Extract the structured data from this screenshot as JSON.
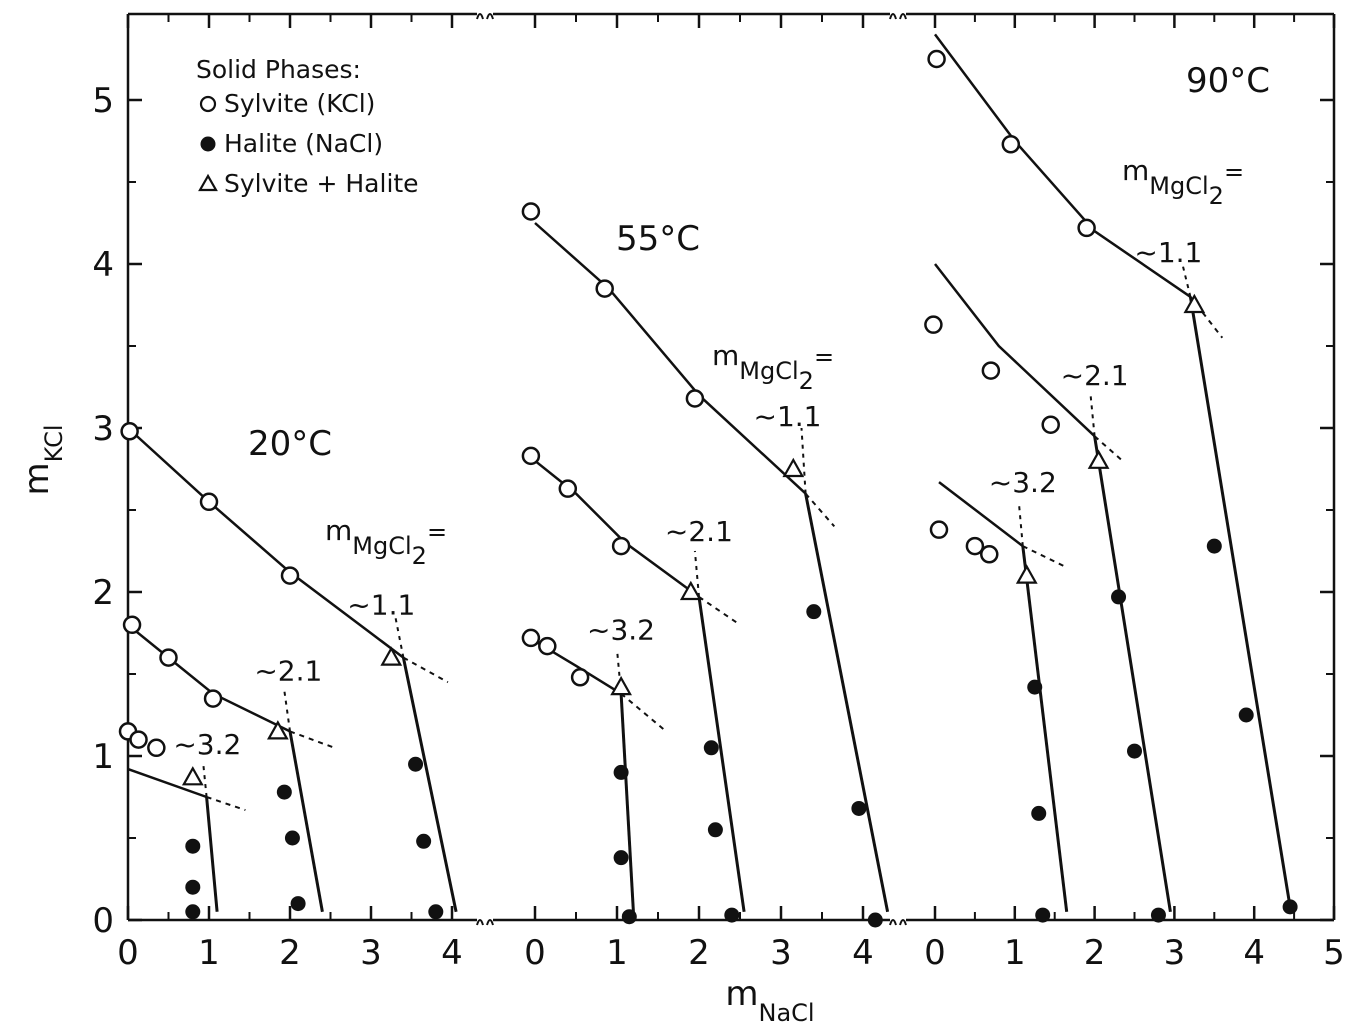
{
  "chart_data": {
    "type": "scatter",
    "ylabel": "m",
    "ylabel_sub": "KCl",
    "xlabel": "m",
    "xlabel_sub": "NaCl",
    "ylim": [
      0,
      5.5
    ],
    "y_ticks": [
      "0",
      "1",
      "2",
      "3",
      "4",
      "5"
    ],
    "legend": {
      "title": "Solid Phases:",
      "entries": [
        {
          "marker": "open-circle",
          "label": "Sylvite (KCl)"
        },
        {
          "marker": "filled-circle",
          "label": "Halite (NaCl)"
        },
        {
          "marker": "open-triangle",
          "label": "Sylvite + Halite"
        }
      ]
    },
    "mgcl2_label": "m",
    "mgcl2_sub": "MgCl",
    "mgcl2_sub2": "2",
    "mgcl2_eq": "=",
    "panels": [
      {
        "temperature": "20°C",
        "x_ticks": [
          "0",
          "1",
          "2",
          "3",
          "4"
        ],
        "xlim": [
          0,
          4.4
        ],
        "groups": [
          {
            "mgcl2": "~1.1",
            "sylvite": [
              [
                0.02,
                2.98
              ],
              [
                1.0,
                2.55
              ],
              [
                2.0,
                2.1
              ]
            ],
            "halite": [
              [
                3.55,
                0.95
              ],
              [
                3.65,
                0.48
              ],
              [
                3.8,
                0.05
              ]
            ],
            "eutonic": [
              [
                3.25,
                1.6
              ]
            ],
            "sylvite_curve": [
              [
                0.0,
                3.0
              ],
              [
                1.0,
                2.55
              ],
              [
                2.0,
                2.12
              ],
              [
                3.4,
                1.6
              ]
            ],
            "sylvite_dash": [
              [
                3.4,
                1.6
              ],
              [
                3.95,
                1.45
              ]
            ],
            "halite_line": [
              [
                3.4,
                1.6
              ],
              [
                4.05,
                0.05
              ]
            ],
            "halite_dash": [
              [
                3.4,
                1.6
              ],
              [
                3.3,
                1.85
              ]
            ]
          },
          {
            "mgcl2": "~2.1",
            "sylvite": [
              [
                0.05,
                1.8
              ],
              [
                0.5,
                1.6
              ],
              [
                1.05,
                1.35
              ]
            ],
            "halite": [
              [
                1.93,
                0.78
              ],
              [
                2.03,
                0.5
              ],
              [
                2.1,
                0.1
              ]
            ],
            "eutonic": [
              [
                1.85,
                1.15
              ]
            ],
            "sylvite_curve": [
              [
                0.0,
                1.8
              ],
              [
                0.5,
                1.6
              ],
              [
                1.05,
                1.38
              ],
              [
                2.0,
                1.15
              ]
            ],
            "sylvite_dash": [
              [
                2.0,
                1.15
              ],
              [
                2.55,
                1.05
              ]
            ],
            "halite_line": [
              [
                2.0,
                1.15
              ],
              [
                2.4,
                0.05
              ]
            ],
            "halite_dash": [
              [
                2.0,
                1.15
              ],
              [
                1.93,
                1.4
              ]
            ]
          },
          {
            "mgcl2": "~3.2",
            "sylvite": [
              [
                0.0,
                1.15
              ],
              [
                0.13,
                1.1
              ],
              [
                0.35,
                1.05
              ]
            ],
            "halite": [
              [
                0.8,
                0.45
              ],
              [
                0.8,
                0.2
              ],
              [
                0.8,
                0.05
              ]
            ],
            "eutonic": [
              [
                0.8,
                0.87
              ]
            ],
            "sylvite_curve": [
              [
                0.0,
                0.92
              ],
              [
                0.97,
                0.75
              ]
            ],
            "sylvite_dash": [
              [
                0.97,
                0.75
              ],
              [
                1.45,
                0.67
              ]
            ],
            "halite_line": [
              [
                0.97,
                0.75
              ],
              [
                1.1,
                0.05
              ]
            ],
            "halite_dash": [
              [
                0.97,
                0.75
              ],
              [
                0.93,
                0.95
              ]
            ]
          }
        ]
      },
      {
        "temperature": "55°C",
        "x_ticks": [
          "0",
          "1",
          "2",
          "3",
          "4"
        ],
        "xlim": [
          0,
          4.4
        ],
        "groups": [
          {
            "mgcl2": "~1.1",
            "sylvite": [
              [
                -0.05,
                4.32
              ],
              [
                0.85,
                3.85
              ],
              [
                1.95,
                3.18
              ]
            ],
            "halite": [
              [
                3.4,
                1.88
              ],
              [
                3.95,
                0.68
              ],
              [
                4.15,
                0.0
              ]
            ],
            "eutonic": [
              [
                3.15,
                2.75
              ]
            ],
            "sylvite_curve": [
              [
                0.0,
                4.25
              ],
              [
                0.9,
                3.85
              ],
              [
                2.0,
                3.2
              ],
              [
                3.3,
                2.6
              ]
            ],
            "sylvite_dash": [
              [
                3.3,
                2.6
              ],
              [
                3.65,
                2.4
              ]
            ],
            "halite_line": [
              [
                3.3,
                2.6
              ],
              [
                4.3,
                0.05
              ]
            ],
            "halite_dash": [
              [
                3.3,
                2.6
              ],
              [
                3.25,
                3.0
              ]
            ]
          },
          {
            "mgcl2": "~2.1",
            "sylvite": [
              [
                -0.05,
                2.83
              ],
              [
                0.4,
                2.63
              ],
              [
                1.05,
                2.28
              ]
            ],
            "halite": [
              [
                2.15,
                1.05
              ],
              [
                2.2,
                0.55
              ],
              [
                2.4,
                0.03
              ]
            ],
            "eutonic": [
              [
                1.9,
                2.0
              ]
            ],
            "sylvite_curve": [
              [
                0.0,
                2.8
              ],
              [
                0.5,
                2.6
              ],
              [
                1.1,
                2.3
              ],
              [
                2.0,
                1.97
              ]
            ],
            "sylvite_dash": [
              [
                2.0,
                1.97
              ],
              [
                2.5,
                1.8
              ]
            ],
            "halite_line": [
              [
                2.0,
                1.97
              ],
              [
                2.55,
                0.05
              ]
            ],
            "halite_dash": [
              [
                2.0,
                1.97
              ],
              [
                1.95,
                2.25
              ]
            ]
          },
          {
            "mgcl2": "~3.2",
            "sylvite": [
              [
                -0.05,
                1.72
              ],
              [
                0.15,
                1.67
              ],
              [
                0.55,
                1.48
              ]
            ],
            "halite": [
              [
                1.05,
                0.9
              ],
              [
                1.05,
                0.38
              ],
              [
                1.15,
                0.02
              ]
            ],
            "eutonic": [
              [
                1.05,
                1.42
              ]
            ],
            "sylvite_curve": [
              [
                0.0,
                1.7
              ],
              [
                0.5,
                1.55
              ],
              [
                1.05,
                1.38
              ]
            ],
            "sylvite_dash": [
              [
                1.05,
                1.38
              ],
              [
                1.6,
                1.15
              ]
            ],
            "halite_line": [
              [
                1.05,
                1.38
              ],
              [
                1.2,
                0.05
              ]
            ],
            "halite_dash": [
              [
                1.05,
                1.38
              ],
              [
                1.0,
                1.65
              ]
            ]
          }
        ]
      },
      {
        "temperature": "90°C",
        "x_ticks": [
          "0",
          "1",
          "2",
          "3",
          "4",
          "5"
        ],
        "xlim": [
          0,
          5.0
        ],
        "groups": [
          {
            "mgcl2": "~1.1",
            "sylvite": [
              [
                0.02,
                5.25
              ],
              [
                0.95,
                4.73
              ],
              [
                1.9,
                4.22
              ]
            ],
            "halite": [
              [
                3.5,
                2.28
              ],
              [
                3.9,
                1.25
              ],
              [
                4.45,
                0.08
              ]
            ],
            "eutonic": [
              [
                3.25,
                3.75
              ]
            ],
            "sylvite_curve": [
              [
                0.0,
                5.4
              ],
              [
                1.0,
                4.75
              ],
              [
                2.0,
                4.2
              ],
              [
                3.2,
                3.8
              ]
            ],
            "sylvite_dash": [
              [
                3.2,
                3.8
              ],
              [
                3.6,
                3.55
              ]
            ],
            "halite_line": [
              [
                3.2,
                3.8
              ],
              [
                4.45,
                0.08
              ]
            ],
            "halite_dash": [
              [
                3.2,
                3.8
              ],
              [
                3.1,
                4.0
              ]
            ]
          },
          {
            "mgcl2": "~2.1",
            "sylvite": [
              [
                -0.02,
                3.63
              ],
              [
                0.7,
                3.35
              ],
              [
                1.45,
                3.02
              ]
            ],
            "halite": [
              [
                2.3,
                1.97
              ],
              [
                2.5,
                1.03
              ],
              [
                2.8,
                0.03
              ]
            ],
            "eutonic": [
              [
                2.05,
                2.8
              ]
            ],
            "sylvite_curve": [
              [
                0.0,
                4.0
              ],
              [
                0.8,
                3.5
              ],
              [
                2.0,
                2.95
              ]
            ],
            "sylvite_dash": [
              [
                2.0,
                2.95
              ],
              [
                2.35,
                2.8
              ]
            ],
            "halite_line": [
              [
                2.0,
                2.95
              ],
              [
                2.95,
                0.05
              ]
            ],
            "halite_dash": [
              [
                2.0,
                2.95
              ],
              [
                1.95,
                3.2
              ]
            ]
          },
          {
            "mgcl2": "~3.2",
            "sylvite": [
              [
                0.05,
                2.38
              ],
              [
                0.5,
                2.28
              ],
              [
                0.68,
                2.23
              ]
            ],
            "halite": [
              [
                1.25,
                1.42
              ],
              [
                1.3,
                0.65
              ],
              [
                1.35,
                0.03
              ]
            ],
            "eutonic": [
              [
                1.15,
                2.1
              ]
            ],
            "sylvite_curve": [
              [
                0.05,
                2.67
              ],
              [
                1.1,
                2.28
              ]
            ],
            "sylvite_dash": [
              [
                1.1,
                2.28
              ],
              [
                1.65,
                2.15
              ]
            ],
            "halite_line": [
              [
                1.1,
                2.28
              ],
              [
                1.65,
                0.05
              ]
            ],
            "halite_dash": [
              [
                1.1,
                2.28
              ],
              [
                1.05,
                2.55
              ]
            ]
          }
        ]
      }
    ]
  }
}
